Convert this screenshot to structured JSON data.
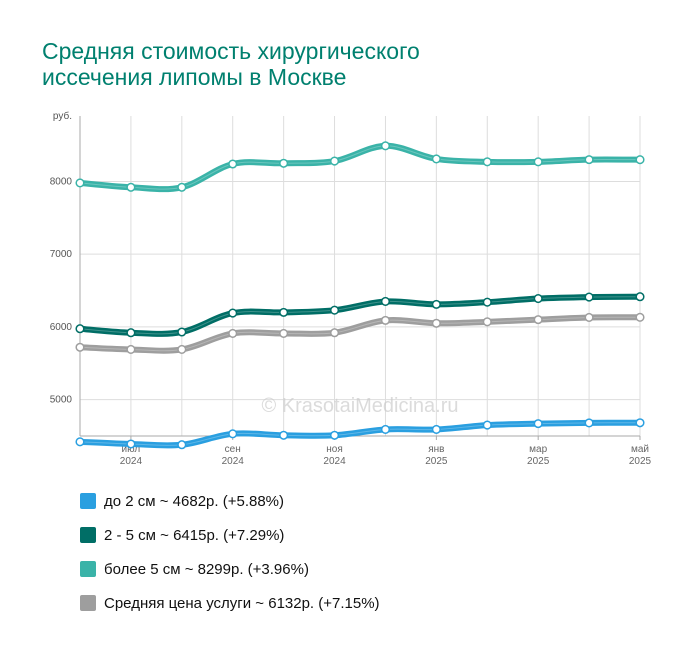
{
  "title_lines": [
    "Средняя стоимость хирургического",
    "иссечения липомы в Москве"
  ],
  "watermark": "© KrasotaiMedicina.ru",
  "chart_data": {
    "type": "line",
    "y_unit": "руб.",
    "ylim": [
      4500,
      8900
    ],
    "yticks": [
      5000,
      6000,
      7000,
      8000
    ],
    "grid": true,
    "x_count": 12,
    "x_ticks": [
      {
        "index": 1,
        "month": "июл",
        "year": "2024"
      },
      {
        "index": 3,
        "month": "сен",
        "year": "2024"
      },
      {
        "index": 5,
        "month": "ноя",
        "year": "2024"
      },
      {
        "index": 7,
        "month": "янв",
        "year": "2025"
      },
      {
        "index": 9,
        "month": "мар",
        "year": "2025"
      },
      {
        "index": 11,
        "month": "май",
        "year": "2025"
      }
    ],
    "legend_position": "bottom",
    "series": [
      {
        "name": "до 2 см ~ 4682р. (+5.88%)",
        "color": "#2a9fe0",
        "values": [
          4420,
          4390,
          4380,
          4530,
          4510,
          4510,
          4590,
          4590,
          4650,
          4670,
          4680,
          4682
        ]
      },
      {
        "name": "2 - 5 см ~ 6415р. (+7.29%)",
        "color": "#006e66",
        "values": [
          5975,
          5920,
          5930,
          6190,
          6200,
          6230,
          6350,
          6310,
          6340,
          6390,
          6410,
          6415
        ]
      },
      {
        "name": "более 5 см ~ 8299р. (+3.96%)",
        "color": "#3ab3a8",
        "values": [
          7980,
          7920,
          7920,
          8240,
          8250,
          8280,
          8490,
          8310,
          8270,
          8270,
          8300,
          8299
        ]
      },
      {
        "name": "Средняя цена услуги ~ 6132р. (+7.15%)",
        "color": "#9e9e9e",
        "values": [
          5720,
          5690,
          5690,
          5910,
          5910,
          5920,
          6090,
          6050,
          6070,
          6100,
          6130,
          6132
        ]
      }
    ]
  }
}
